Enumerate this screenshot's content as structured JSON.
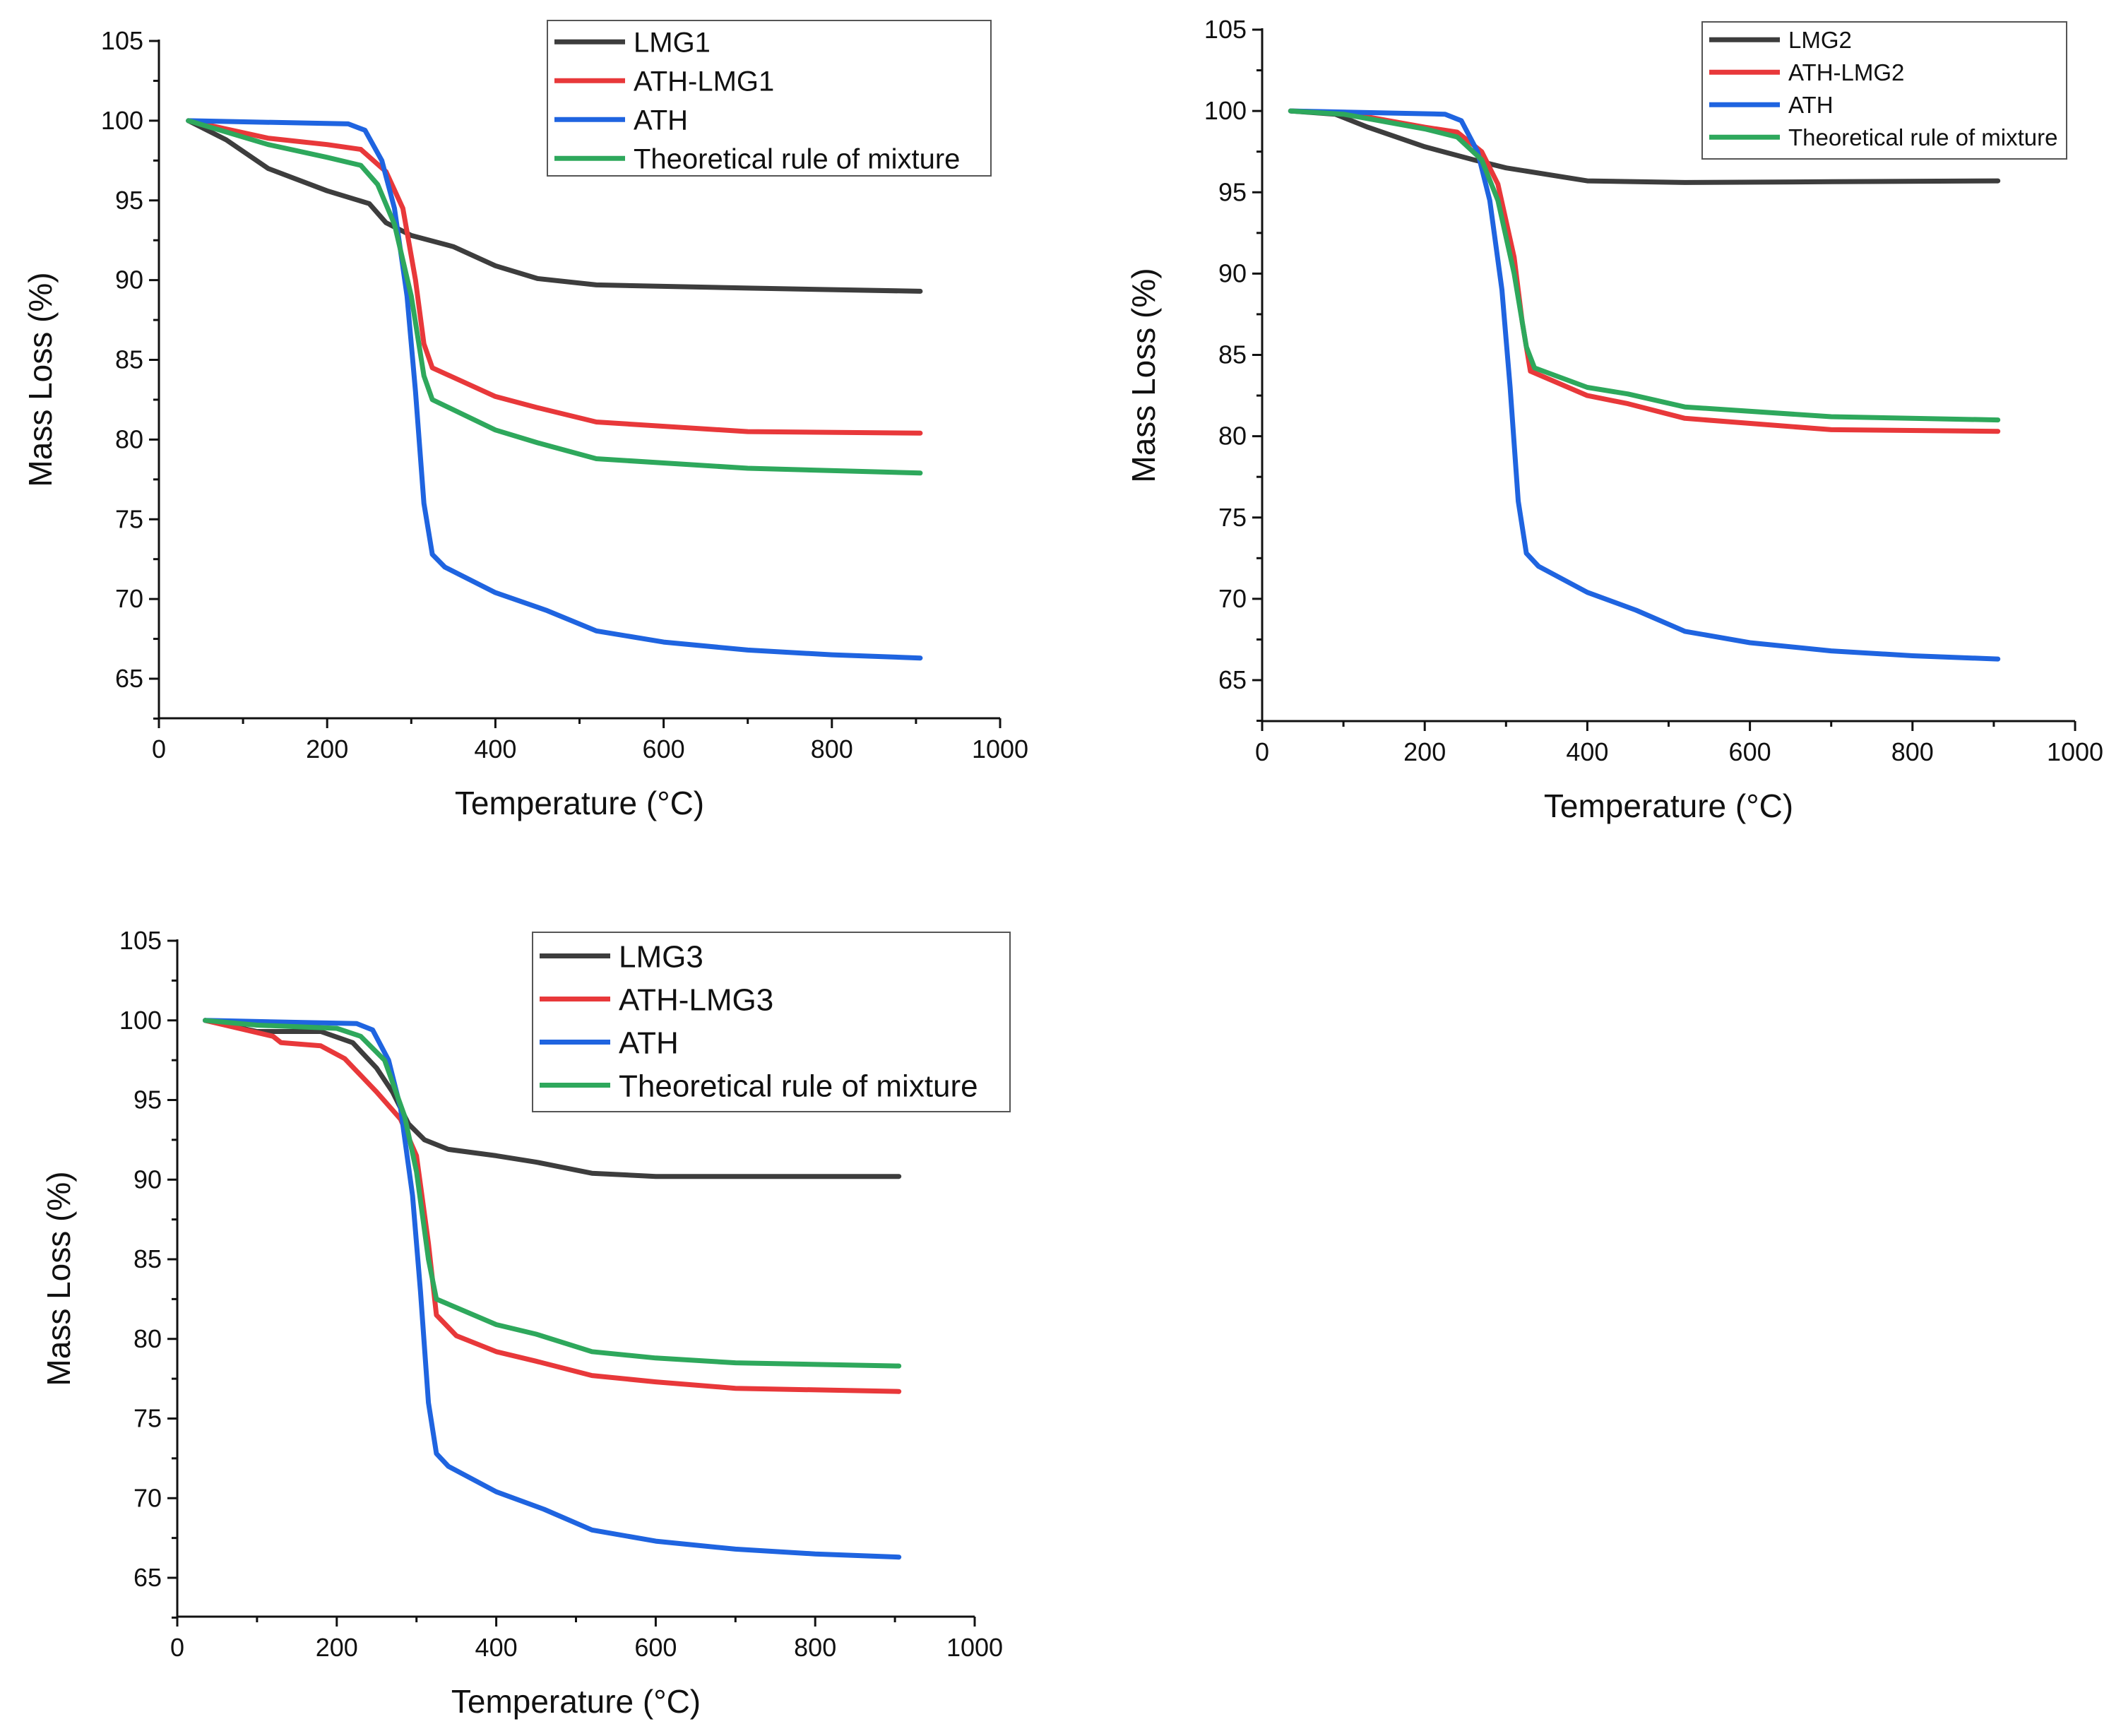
{
  "colors": {
    "lmg": "#3d3d3d",
    "ath_lmg": "#e8383a",
    "ath": "#1f64e0",
    "theory": "#2ea85c"
  },
  "chart_data": [
    {
      "type": "line",
      "xlabel": "Temperature (°C)",
      "ylabel": "Mass Loss (%)",
      "xlim": [
        0,
        1000
      ],
      "ylim": [
        62.5,
        105
      ],
      "xticks": [
        "0",
        "200",
        "400",
        "600",
        "800",
        "1000"
      ],
      "yticks": [
        "65",
        "70",
        "75",
        "80",
        "85",
        "90",
        "95",
        "100",
        "105"
      ],
      "legend_position": "top-right",
      "series": [
        {
          "name": "LMG1",
          "color_key": "lmg",
          "points": [
            [
              35,
              100
            ],
            [
              80,
              98.8
            ],
            [
              130,
              97
            ],
            [
              200,
              95.6
            ],
            [
              250,
              94.8
            ],
            [
              270,
              93.6
            ],
            [
              300,
              92.8
            ],
            [
              350,
              92.1
            ],
            [
              400,
              90.9
            ],
            [
              450,
              90.1
            ],
            [
              520,
              89.7
            ],
            [
              700,
              89.5
            ],
            [
              905,
              89.3
            ]
          ]
        },
        {
          "name": "ATH-LMG1",
          "color_key": "ath_lmg",
          "points": [
            [
              35,
              100
            ],
            [
              130,
              98.9
            ],
            [
              200,
              98.5
            ],
            [
              240,
              98.2
            ],
            [
              270,
              96.8
            ],
            [
              290,
              94.5
            ],
            [
              305,
              90
            ],
            [
              315,
              86
            ],
            [
              325,
              84.5
            ],
            [
              400,
              82.7
            ],
            [
              450,
              82
            ],
            [
              520,
              81.1
            ],
            [
              700,
              80.5
            ],
            [
              905,
              80.4
            ]
          ]
        },
        {
          "name": "ATH",
          "color_key": "ath",
          "points": [
            [
              35,
              100
            ],
            [
              225,
              99.8
            ],
            [
              245,
              99.4
            ],
            [
              265,
              97.5
            ],
            [
              280,
              94.5
            ],
            [
              295,
              89
            ],
            [
              305,
              83
            ],
            [
              315,
              76
            ],
            [
              325,
              72.8
            ],
            [
              340,
              72
            ],
            [
              400,
              70.4
            ],
            [
              460,
              69.3
            ],
            [
              520,
              68
            ],
            [
              600,
              67.3
            ],
            [
              700,
              66.8
            ],
            [
              800,
              66.5
            ],
            [
              905,
              66.3
            ]
          ]
        },
        {
          "name": "Theoretical rule of mixture",
          "color_key": "theory",
          "points": [
            [
              35,
              100
            ],
            [
              130,
              98.5
            ],
            [
              200,
              97.7
            ],
            [
              240,
              97.2
            ],
            [
              260,
              96
            ],
            [
              280,
              93.5
            ],
            [
              300,
              89
            ],
            [
              315,
              84
            ],
            [
              325,
              82.5
            ],
            [
              400,
              80.6
            ],
            [
              450,
              79.8
            ],
            [
              520,
              78.8
            ],
            [
              700,
              78.2
            ],
            [
              905,
              77.9
            ]
          ]
        }
      ]
    },
    {
      "type": "line",
      "xlabel": "Temperature (°C)",
      "ylabel": "Mass Loss (%)",
      "xlim": [
        0,
        1000
      ],
      "ylim": [
        62.5,
        105
      ],
      "xticks": [
        "0",
        "200",
        "400",
        "600",
        "800",
        "1000"
      ],
      "yticks": [
        "65",
        "70",
        "75",
        "80",
        "85",
        "90",
        "95",
        "100",
        "105"
      ],
      "legend_position": "top-right",
      "series": [
        {
          "name": "LMG2",
          "color_key": "lmg",
          "points": [
            [
              35,
              100
            ],
            [
              90,
              99.8
            ],
            [
              130,
              99
            ],
            [
              200,
              97.8
            ],
            [
              260,
              97
            ],
            [
              300,
              96.5
            ],
            [
              400,
              95.7
            ],
            [
              520,
              95.6
            ],
            [
              700,
              95.65
            ],
            [
              905,
              95.7
            ]
          ]
        },
        {
          "name": "ATH-LMG2",
          "color_key": "ath_lmg",
          "points": [
            [
              35,
              100
            ],
            [
              100,
              99.9
            ],
            [
              200,
              99
            ],
            [
              240,
              98.7
            ],
            [
              270,
              97.5
            ],
            [
              290,
              95.5
            ],
            [
              310,
              91
            ],
            [
              320,
              87
            ],
            [
              330,
              84
            ],
            [
              400,
              82.5
            ],
            [
              450,
              82
            ],
            [
              520,
              81.1
            ],
            [
              700,
              80.4
            ],
            [
              905,
              80.3
            ]
          ]
        },
        {
          "name": "ATH",
          "color_key": "ath",
          "points": [
            [
              35,
              100
            ],
            [
              225,
              99.8
            ],
            [
              245,
              99.4
            ],
            [
              265,
              97.5
            ],
            [
              280,
              94.5
            ],
            [
              295,
              89
            ],
            [
              305,
              83
            ],
            [
              315,
              76
            ],
            [
              325,
              72.8
            ],
            [
              340,
              72
            ],
            [
              400,
              70.4
            ],
            [
              460,
              69.3
            ],
            [
              520,
              68
            ],
            [
              600,
              67.3
            ],
            [
              700,
              66.8
            ],
            [
              800,
              66.5
            ],
            [
              905,
              66.3
            ]
          ]
        },
        {
          "name": "Theoretical rule of mixture",
          "color_key": "theory",
          "points": [
            [
              35,
              100
            ],
            [
              100,
              99.8
            ],
            [
              200,
              98.9
            ],
            [
              240,
              98.4
            ],
            [
              270,
              97
            ],
            [
              290,
              94.5
            ],
            [
              310,
              90
            ],
            [
              325,
              85.5
            ],
            [
              335,
              84.2
            ],
            [
              400,
              83
            ],
            [
              450,
              82.6
            ],
            [
              520,
              81.8
            ],
            [
              700,
              81.2
            ],
            [
              905,
              81
            ]
          ]
        }
      ]
    },
    {
      "type": "line",
      "xlabel": "Temperature (°C)",
      "ylabel": "Mass Loss (%)",
      "xlim": [
        0,
        1000
      ],
      "ylim": [
        62.5,
        105
      ],
      "xticks": [
        "0",
        "200",
        "400",
        "600",
        "800",
        "1000"
      ],
      "yticks": [
        "65",
        "70",
        "75",
        "80",
        "85",
        "90",
        "95",
        "100",
        "105"
      ],
      "legend_position": "top-right",
      "series": [
        {
          "name": "LMG3",
          "color_key": "lmg",
          "points": [
            [
              35,
              100
            ],
            [
              100,
              99.3
            ],
            [
              180,
              99.3
            ],
            [
              220,
              98.6
            ],
            [
              250,
              97
            ],
            [
              270,
              95.5
            ],
            [
              290,
              93.5
            ],
            [
              310,
              92.5
            ],
            [
              340,
              91.9
            ],
            [
              400,
              91.5
            ],
            [
              450,
              91.1
            ],
            [
              520,
              90.4
            ],
            [
              600,
              90.2
            ],
            [
              905,
              90.2
            ]
          ]
        },
        {
          "name": "ATH-LMG3",
          "color_key": "ath_lmg",
          "points": [
            [
              35,
              100
            ],
            [
              120,
              99
            ],
            [
              130,
              98.6
            ],
            [
              180,
              98.4
            ],
            [
              210,
              97.6
            ],
            [
              250,
              95.5
            ],
            [
              280,
              93.8
            ],
            [
              300,
              91.5
            ],
            [
              315,
              86
            ],
            [
              325,
              81.5
            ],
            [
              350,
              80.2
            ],
            [
              400,
              79.2
            ],
            [
              450,
              78.6
            ],
            [
              520,
              77.7
            ],
            [
              600,
              77.3
            ],
            [
              700,
              76.9
            ],
            [
              905,
              76.7
            ]
          ]
        },
        {
          "name": "ATH",
          "color_key": "ath",
          "points": [
            [
              35,
              100
            ],
            [
              225,
              99.8
            ],
            [
              245,
              99.4
            ],
            [
              265,
              97.5
            ],
            [
              280,
              94.5
            ],
            [
              295,
              89
            ],
            [
              305,
              83
            ],
            [
              315,
              76
            ],
            [
              325,
              72.8
            ],
            [
              340,
              72
            ],
            [
              400,
              70.4
            ],
            [
              460,
              69.3
            ],
            [
              520,
              68
            ],
            [
              600,
              67.3
            ],
            [
              700,
              66.8
            ],
            [
              800,
              66.5
            ],
            [
              905,
              66.3
            ]
          ]
        },
        {
          "name": "Theoretical rule of mixture",
          "color_key": "theory",
          "points": [
            [
              35,
              100
            ],
            [
              100,
              99.7
            ],
            [
              200,
              99.5
            ],
            [
              230,
              99
            ],
            [
              260,
              97.5
            ],
            [
              285,
              94
            ],
            [
              300,
              90.5
            ],
            [
              315,
              85
            ],
            [
              325,
              82.5
            ],
            [
              400,
              80.9
            ],
            [
              450,
              80.3
            ],
            [
              520,
              79.2
            ],
            [
              600,
              78.8
            ],
            [
              700,
              78.5
            ],
            [
              905,
              78.3
            ]
          ]
        }
      ]
    }
  ]
}
